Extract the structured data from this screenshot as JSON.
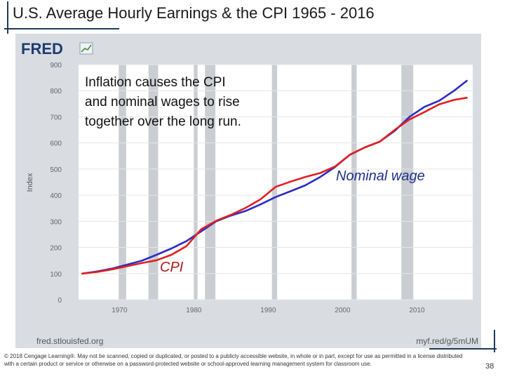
{
  "slide": {
    "title": "U.S. Average Hourly Earnings & the CPI 1965 - 2016",
    "annotation": "Inflation causes the CPI and nominal wages to rise together over the long run.",
    "label_nominal": "Nominal wage",
    "label_cpi": "CPI",
    "copyright": "© 2018 Cengage Learning®. May not be scanned, copied or duplicated, or posted to a publicly accessible website, in whole or in part, except for use as permitted in a license distributed with a certain product or service or otherwise on a password-protected website or school-approved learning management system for classroom use.",
    "page_number": "38",
    "accent_color": "#1f3b57"
  },
  "chart_data": {
    "type": "line",
    "source_logo": "FRED",
    "source_url": "fred.stlouisfed.org",
    "short_link": "myf.red/g/5mUM",
    "ylabel": "Index",
    "xlabel": "",
    "xlim": [
      1964.5,
      2017.5
    ],
    "ylim": [
      0,
      900
    ],
    "x_ticks": [
      1970,
      1980,
      1990,
      2000,
      2010
    ],
    "y_ticks": [
      0,
      100,
      200,
      300,
      400,
      500,
      600,
      700,
      800,
      900
    ],
    "recessions": [
      [
        1969.9,
        1970.9
      ],
      [
        1973.9,
        1975.2
      ],
      [
        1980.0,
        1980.5
      ],
      [
        1981.5,
        1982.9
      ],
      [
        1990.5,
        1991.2
      ],
      [
        2001.2,
        2001.9
      ],
      [
        2007.9,
        2009.5
      ]
    ],
    "colors": {
      "nominal_wage": "#2b2bc9",
      "cpi": "#e02020",
      "recession": "#b8bcc2"
    },
    "series": [
      {
        "name": "Nominal wage",
        "key": "nominal_wage",
        "x": [
          1965,
          1967,
          1969,
          1971,
          1973,
          1975,
          1977,
          1979,
          1981,
          1983,
          1985,
          1987,
          1989,
          1991,
          1993,
          1995,
          1997,
          1999,
          2001,
          2003,
          2005,
          2007,
          2009,
          2011,
          2013,
          2015,
          2016.7
        ],
        "values": [
          100,
          108,
          119,
          134,
          149,
          172,
          196,
          224,
          262,
          300,
          322,
          340,
          365,
          393,
          415,
          438,
          470,
          508,
          555,
          583,
          605,
          646,
          700,
          738,
          762,
          800,
          838
        ]
      },
      {
        "name": "CPI",
        "key": "cpi",
        "x": [
          1965,
          1967,
          1969,
          1971,
          1973,
          1975,
          1977,
          1979,
          1981,
          1983,
          1985,
          1987,
          1989,
          1991,
          1993,
          1995,
          1997,
          1999,
          2001,
          2003,
          2005,
          2007,
          2009,
          2011,
          2013,
          2015,
          2016.7
        ],
        "values": [
          100,
          106,
          116,
          128,
          140,
          151,
          172,
          205,
          270,
          302,
          325,
          352,
          385,
          432,
          452,
          470,
          485,
          510,
          555,
          583,
          605,
          650,
          690,
          718,
          748,
          765,
          773
        ]
      }
    ]
  }
}
